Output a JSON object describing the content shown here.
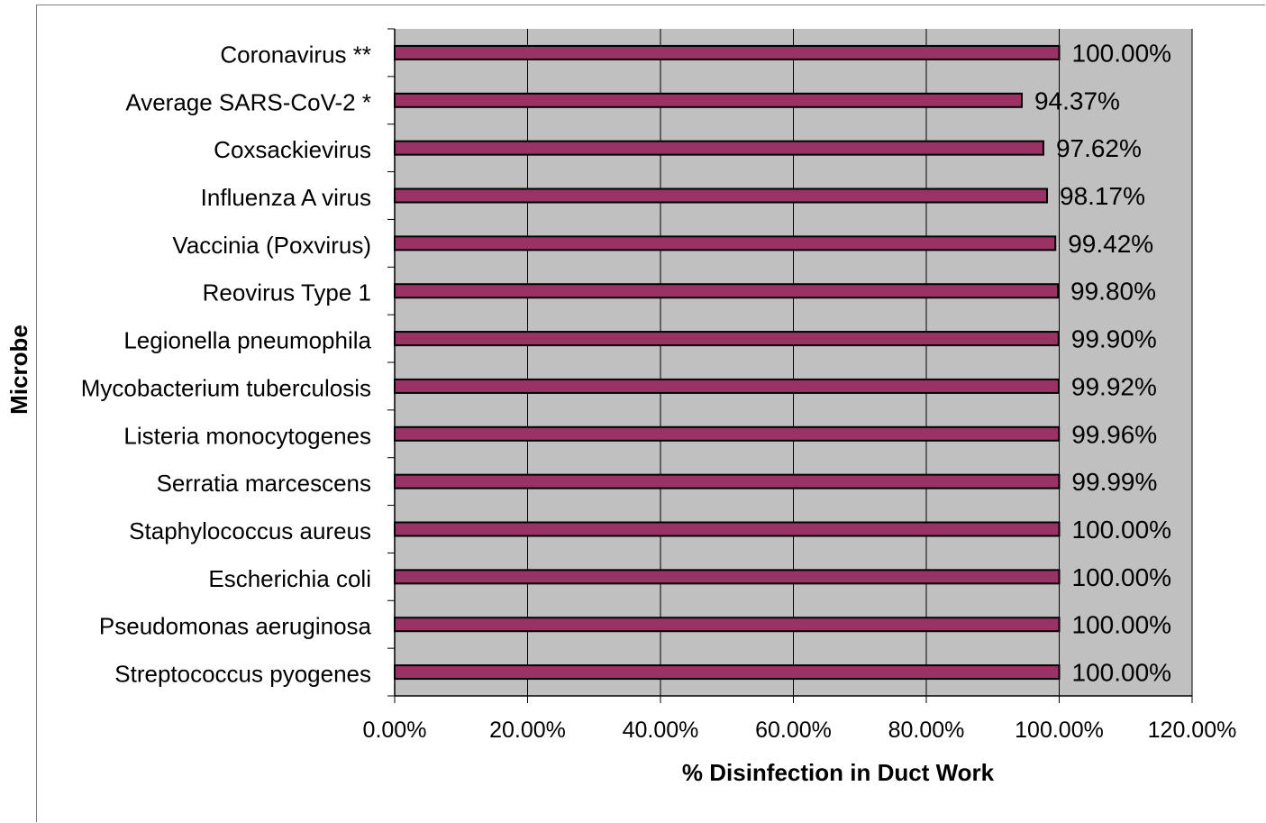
{
  "chart_data": {
    "type": "bar",
    "orientation": "horizontal",
    "xlabel": "% Disinfection in Duct Work",
    "ylabel": "Microbe",
    "xlim": [
      0,
      1.2
    ],
    "x_ticks": [
      "0.00%",
      "20.00%",
      "40.00%",
      "60.00%",
      "80.00%",
      "100.00%",
      "120.00%"
    ],
    "grid": true,
    "bar_color": "#993366",
    "plot_background": "#c0c0c0",
    "categories": [
      "Coronavirus **",
      "Average SARS-CoV-2 *",
      "Coxsackievirus",
      "Influenza A virus",
      "Vaccinia (Poxvirus)",
      "Reovirus Type 1",
      "Legionella pneumophila",
      "Mycobacterium tuberculosis",
      "Listeria monocytogenes",
      "Serratia marcescens",
      "Staphylococcus aureus",
      "Escherichia coli",
      "Pseudomonas aeruginosa",
      "Streptococcus pyogenes"
    ],
    "values": [
      1.0,
      0.9437,
      0.9762,
      0.9817,
      0.9942,
      0.998,
      0.999,
      0.9992,
      0.9996,
      0.9999,
      1.0,
      1.0,
      1.0,
      1.0
    ],
    "value_labels": [
      "100.00%",
      "94.37%",
      "97.62%",
      "98.17%",
      "99.42%",
      "99.80%",
      "99.90%",
      "99.92%",
      "99.96%",
      "99.99%",
      "100.00%",
      "100.00%",
      "100.00%",
      "100.00%"
    ]
  }
}
